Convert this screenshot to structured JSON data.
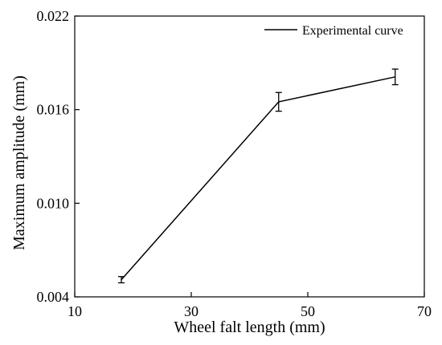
{
  "chart_data": {
    "type": "line",
    "xlabel": "Wheel falt length (mm)",
    "ylabel": "Maximum amplitude (mm)",
    "xlim": [
      10,
      70
    ],
    "ylim": [
      0.004,
      0.022
    ],
    "xticks": [
      "10",
      "30",
      "50",
      "70"
    ],
    "yticks": [
      "0.004",
      "0.010",
      "0.016",
      "0.022"
    ],
    "grid": false,
    "legend": {
      "position": "top-right",
      "entries": [
        "Experimental curve"
      ]
    },
    "series": [
      {
        "name": "Experimental curve",
        "color": "#000000",
        "x": [
          18,
          45,
          65
        ],
        "y": [
          0.0051,
          0.0165,
          0.0181
        ],
        "error": [
          0.0002,
          0.0006,
          0.0005
        ]
      }
    ]
  }
}
